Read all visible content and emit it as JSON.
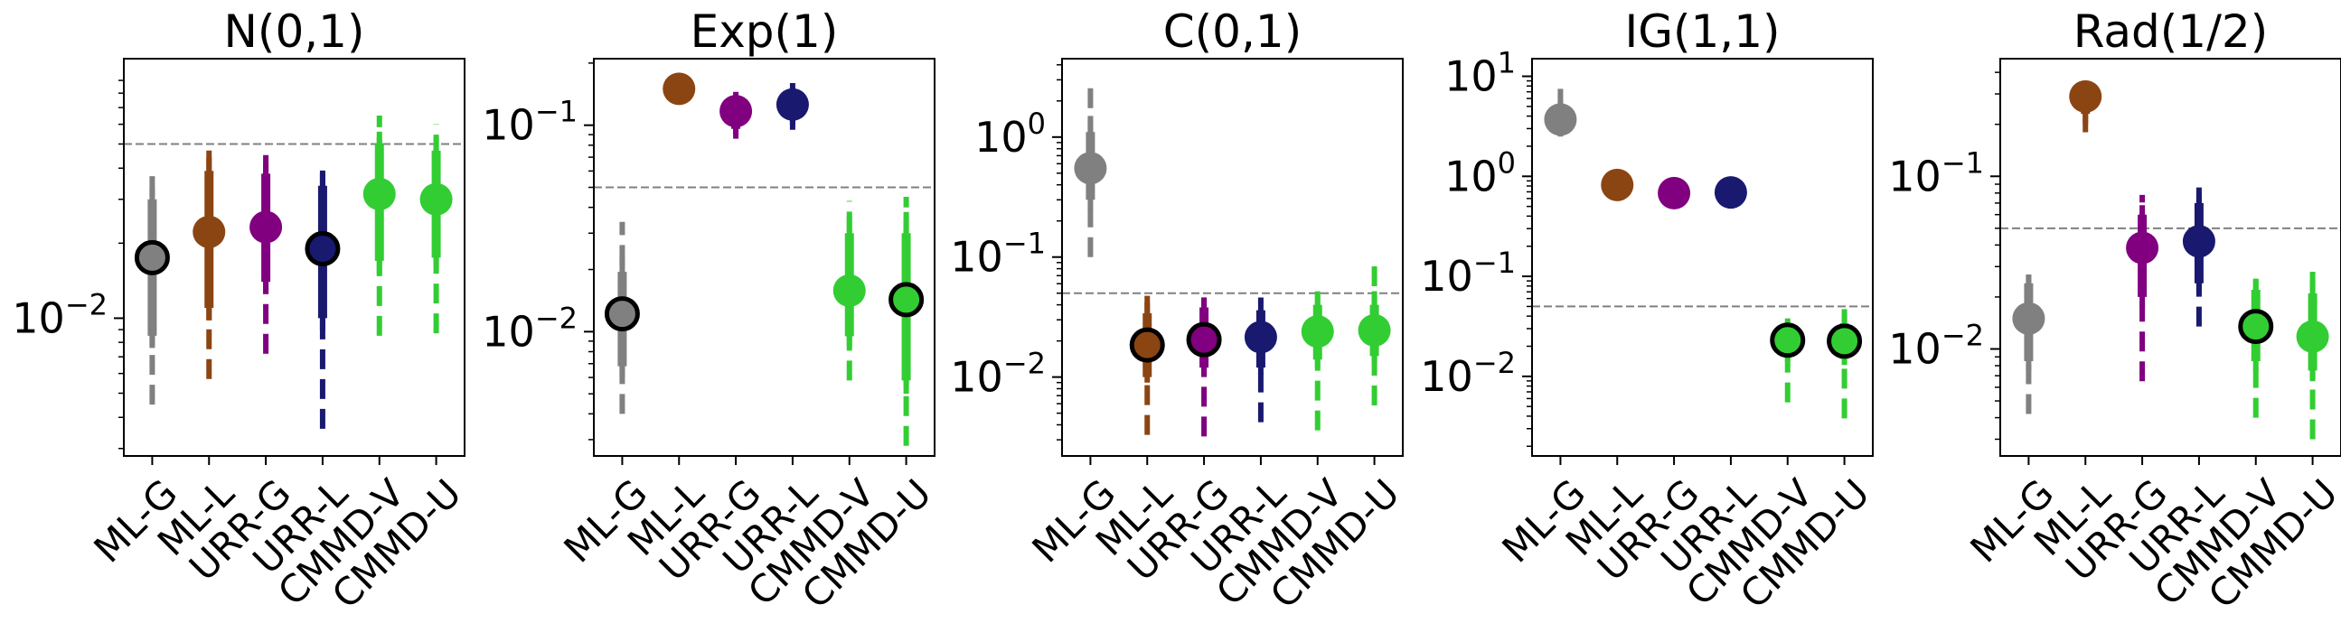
{
  "chart_data": [
    {
      "type": "scatter",
      "title": "N(0,1)",
      "yscale": "log",
      "ylim": [
        0.0028,
        0.11
      ],
      "yticks": [
        {
          "value": 0.01,
          "base": "10",
          "exp": "−2"
        }
      ],
      "reference_line": 0.05,
      "categories": [
        "ML-G",
        "ML-L",
        "URR-G",
        "URR-L",
        "CMMD-V",
        "CMMD-U"
      ],
      "points": [
        {
          "y": 0.0175,
          "thick": [
            0.0085,
            0.03
          ],
          "thin": [
            0.0076,
            0.0335
          ],
          "dash": [
            0.0045,
            0.0375
          ],
          "outlined": true
        },
        {
          "y": 0.0222,
          "thick": [
            0.011,
            0.039
          ],
          "thin": [
            0.0098,
            0.044
          ],
          "dash": [
            0.0057,
            0.049
          ],
          "outlined": false
        },
        {
          "y": 0.0232,
          "thick": [
            0.014,
            0.038
          ],
          "thin": [
            0.0125,
            0.042
          ],
          "dash": [
            0.0072,
            0.049
          ],
          "outlined": false
        },
        {
          "y": 0.019,
          "thick": [
            0.01,
            0.034
          ],
          "thin": [
            0.009,
            0.038
          ],
          "dash": [
            0.0036,
            0.042
          ],
          "outlined": true
        },
        {
          "y": 0.0315,
          "thick": [
            0.017,
            0.05
          ],
          "thin": [
            0.015,
            0.056
          ],
          "dash": [
            0.0085,
            0.065
          ],
          "outlined": false
        },
        {
          "y": 0.03,
          "thick": [
            0.0175,
            0.047
          ],
          "thin": [
            0.016,
            0.053
          ],
          "dash": [
            0.0087,
            0.06
          ],
          "outlined": false
        }
      ]
    },
    {
      "type": "scatter",
      "title": "Exp(1)",
      "yscale": "log",
      "ylim": [
        0.0025,
        0.21
      ],
      "yticks": [
        {
          "value": 0.01,
          "base": "10",
          "exp": "−2"
        },
        {
          "value": 0.1,
          "base": "10",
          "exp": "−1"
        }
      ],
      "reference_line": 0.05,
      "categories": [
        "ML-G",
        "ML-L",
        "URR-G",
        "URR-L",
        "CMMD-V",
        "CMMD-U"
      ],
      "points": [
        {
          "y": 0.0122,
          "thick": [
            0.0068,
            0.0195
          ],
          "thin": [
            0.006,
            0.023
          ],
          "dash": [
            0.004,
            0.034
          ],
          "outlined": true
        },
        {
          "y": 0.15,
          "thick": [
            0.14,
            0.165
          ],
          "thin": [
            0.135,
            0.172
          ],
          "dash": [
            0.13,
            0.18
          ],
          "outlined": false
        },
        {
          "y": 0.117,
          "thick": [
            0.096,
            0.132
          ],
          "thin": [
            0.09,
            0.138
          ],
          "dash": [
            0.086,
            0.145
          ],
          "outlined": false
        },
        {
          "y": 0.126,
          "thick": [
            0.108,
            0.146
          ],
          "thin": [
            0.1,
            0.152
          ],
          "dash": [
            0.095,
            0.16
          ],
          "outlined": false
        },
        {
          "y": 0.0158,
          "thick": [
            0.0095,
            0.03
          ],
          "thin": [
            0.0085,
            0.036
          ],
          "dash": [
            0.0058,
            0.043
          ],
          "outlined": false
        },
        {
          "y": 0.0143,
          "thick": [
            0.0058,
            0.03
          ],
          "thin": [
            0.005,
            0.038
          ],
          "dash": [
            0.0028,
            0.045
          ],
          "outlined": true
        }
      ]
    },
    {
      "type": "scatter",
      "title": "C(0,1)",
      "yscale": "log",
      "ylim": [
        0.0022,
        4.5
      ],
      "yticks": [
        {
          "value": 0.01,
          "base": "10",
          "exp": "−2"
        },
        {
          "value": 0.1,
          "base": "10",
          "exp": "−1"
        },
        {
          "value": 1,
          "base": "10",
          "exp": "0"
        }
      ],
      "reference_line": 0.05,
      "categories": [
        "ML-G",
        "ML-L",
        "URR-G",
        "URR-L",
        "CMMD-V",
        "CMMD-U"
      ],
      "points": [
        {
          "y": 0.55,
          "thick": [
            0.3,
            1.1
          ],
          "thin": [
            0.25,
            1.5
          ],
          "dash": [
            0.1,
            2.8
          ],
          "outlined": false
        },
        {
          "y": 0.0185,
          "thick": [
            0.01,
            0.034
          ],
          "thin": [
            0.009,
            0.042
          ],
          "dash": [
            0.0033,
            0.053
          ],
          "outlined": true
        },
        {
          "y": 0.0205,
          "thick": [
            0.012,
            0.038
          ],
          "thin": [
            0.01,
            0.045
          ],
          "dash": [
            0.0032,
            0.053
          ],
          "outlined": true
        },
        {
          "y": 0.0215,
          "thick": [
            0.012,
            0.036
          ],
          "thin": [
            0.0105,
            0.042
          ],
          "dash": [
            0.0042,
            0.046
          ],
          "outlined": false
        },
        {
          "y": 0.024,
          "thick": [
            0.014,
            0.04
          ],
          "thin": [
            0.012,
            0.05
          ],
          "dash": [
            0.0036,
            0.062
          ],
          "outlined": false
        },
        {
          "y": 0.0245,
          "thick": [
            0.015,
            0.04
          ],
          "thin": [
            0.013,
            0.052
          ],
          "dash": [
            0.0058,
            0.085
          ],
          "outlined": false
        }
      ]
    },
    {
      "type": "scatter",
      "title": "IG(1,1)",
      "yscale": "log",
      "ylim": [
        0.0016,
        15
      ],
      "yticks": [
        {
          "value": 0.01,
          "base": "10",
          "exp": "−2"
        },
        {
          "value": 0.1,
          "base": "10",
          "exp": "−1"
        },
        {
          "value": 1,
          "base": "10",
          "exp": "0"
        },
        {
          "value": 10,
          "base": "10",
          "exp": "1"
        }
      ],
      "reference_line": 0.05,
      "categories": [
        "ML-G",
        "ML-L",
        "URR-G",
        "URR-L",
        "CMMD-V",
        "CMMD-U"
      ],
      "points": [
        {
          "y": 3.7,
          "thick": [
            3.1,
            5.0
          ],
          "thin": [
            2.8,
            5.8
          ],
          "dash": [
            2.5,
            7.5
          ],
          "outlined": false
        },
        {
          "y": 0.82,
          "thick": [
            0.8,
            0.84
          ],
          "thin": [
            0.8,
            0.84
          ],
          "dash": [
            0.8,
            0.84
          ],
          "outlined": false
        },
        {
          "y": 0.68,
          "thick": [
            0.66,
            0.7
          ],
          "thin": [
            0.66,
            0.7
          ],
          "dash": [
            0.66,
            0.7
          ],
          "outlined": false
        },
        {
          "y": 0.69,
          "thick": [
            0.67,
            0.71
          ],
          "thin": [
            0.67,
            0.71
          ],
          "dash": [
            0.67,
            0.71
          ],
          "outlined": false
        },
        {
          "y": 0.023,
          "thick": [
            0.016,
            0.033
          ],
          "thin": [
            0.014,
            0.038
          ],
          "dash": [
            0.0055,
            0.043
          ],
          "outlined": true
        },
        {
          "y": 0.0225,
          "thick": [
            0.015,
            0.034
          ],
          "thin": [
            0.013,
            0.04
          ],
          "dash": [
            0.0038,
            0.052
          ],
          "outlined": true
        }
      ]
    },
    {
      "type": "scatter",
      "title": "Rad(1/2)",
      "yscale": "log",
      "ylim": [
        0.0024,
        0.48
      ],
      "yticks": [
        {
          "value": 0.01,
          "base": "10",
          "exp": "−2"
        },
        {
          "value": 0.1,
          "base": "10",
          "exp": "−1"
        }
      ],
      "reference_line": 0.05,
      "categories": [
        "ML-G",
        "ML-L",
        "URR-G",
        "URR-L",
        "CMMD-V",
        "CMMD-U"
      ],
      "points": [
        {
          "y": 0.015,
          "thick": [
            0.0085,
            0.024
          ],
          "thin": [
            0.0075,
            0.027
          ],
          "dash": [
            0.0042,
            0.03
          ],
          "outlined": false
        },
        {
          "y": 0.29,
          "thick": [
            0.23,
            0.3
          ],
          "thin": [
            0.2,
            0.3
          ],
          "dash": [
            0.18,
            0.3
          ],
          "outlined": false
        },
        {
          "y": 0.0385,
          "thick": [
            0.02,
            0.06
          ],
          "thin": [
            0.017,
            0.068
          ],
          "dash": [
            0.0065,
            0.078
          ],
          "outlined": false
        },
        {
          "y": 0.042,
          "thick": [
            0.024,
            0.07
          ],
          "thin": [
            0.021,
            0.08
          ],
          "dash": [
            0.0135,
            0.095
          ],
          "outlined": false
        },
        {
          "y": 0.0135,
          "thick": [
            0.0085,
            0.022
          ],
          "thin": [
            0.0075,
            0.025
          ],
          "dash": [
            0.004,
            0.028
          ],
          "outlined": true
        },
        {
          "y": 0.0118,
          "thick": [
            0.0075,
            0.021
          ],
          "thin": [
            0.0065,
            0.025
          ],
          "dash": [
            0.003,
            0.028
          ],
          "outlined": false
        }
      ]
    }
  ],
  "colors": {
    "ML-G": "#808080",
    "ML-L": "#8b4513",
    "URR-G": "#800080",
    "URR-L": "#191970",
    "CMMD-V": "#32cd32",
    "CMMD-U": "#32cd32",
    "reference_line": "#808080",
    "axis": "#000000"
  }
}
